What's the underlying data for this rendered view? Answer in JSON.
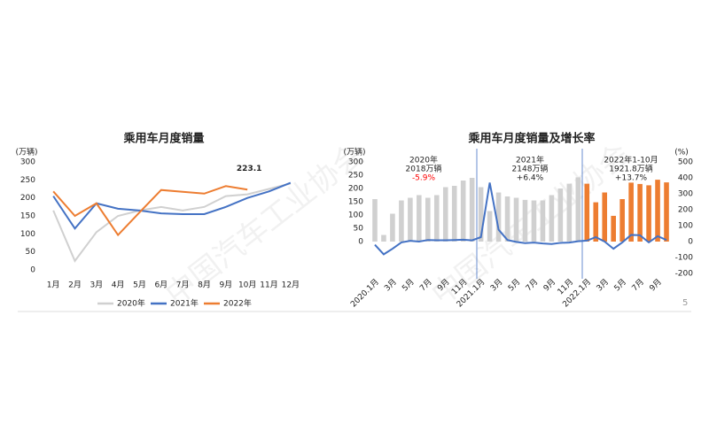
{
  "chart_data": [
    {
      "type": "line",
      "title": "乘用车月度销量",
      "y_label": "(万辆)",
      "categories": [
        "1月",
        "2月",
        "3月",
        "4月",
        "5月",
        "6月",
        "7月",
        "8月",
        "9月",
        "10月",
        "11月",
        "12月"
      ],
      "series": [
        {
          "name": "2020年",
          "color": "#d0d0d0",
          "values": [
            165,
            25,
            105,
            150,
            165,
            175,
            165,
            175,
            205,
            210,
            225,
            240
          ]
        },
        {
          "name": "2021年",
          "color": "#4472c4",
          "values": [
            205,
            115,
            185,
            170,
            165,
            157,
            155,
            155,
            175,
            200,
            218,
            242
          ]
        },
        {
          "name": "2022年",
          "color": "#ed7d31",
          "values": [
            218,
            150,
            185,
            97,
            160,
            222,
            217,
            212,
            233,
            223.1,
            null,
            null
          ]
        }
      ],
      "ylim": [
        0,
        300
      ],
      "yticks": [
        0,
        50,
        100,
        150,
        200,
        250,
        300
      ],
      "annotation": "223.1",
      "legend": "bottom"
    },
    {
      "type": "bar-line",
      "title": "乘用车月度销量及增长率",
      "y_label": "(万辆)",
      "y2_label": "(%)",
      "categories": [
        "2020.1月",
        null,
        "3月",
        null,
        "5月",
        null,
        "7月",
        null,
        "9月",
        null,
        "11月",
        null,
        "2021.1月",
        null,
        "3月",
        null,
        "5月",
        null,
        "7月",
        null,
        "9月",
        null,
        "11月",
        null,
        "2022.1月",
        null,
        "3月",
        null,
        "5月",
        null,
        "7月",
        null,
        "9月",
        null
      ],
      "series": [
        {
          "type": "bar",
          "color": "#d0d0d0",
          "values": [
            160,
            25,
            105,
            155,
            165,
            175,
            165,
            175,
            205,
            210,
            230,
            240,
            205,
            115,
            185,
            170,
            165,
            157,
            155,
            155,
            175,
            200,
            218,
            242,
            null,
            null,
            null,
            null,
            null,
            null,
            null,
            null,
            null,
            null
          ]
        },
        {
          "type": "bar",
          "color": "#ed7d31",
          "values": [
            null,
            null,
            null,
            null,
            null,
            null,
            null,
            null,
            null,
            null,
            null,
            null,
            null,
            null,
            null,
            null,
            null,
            null,
            null,
            null,
            null,
            null,
            null,
            null,
            218,
            148,
            185,
            97,
            160,
            222,
            217,
            212,
            233,
            223
          ]
        },
        {
          "type": "line",
          "axis": "y2",
          "color": "#4472c4",
          "values": [
            -20,
            -80,
            -45,
            -5,
            5,
            0,
            10,
            8,
            8,
            10,
            12,
            8,
            28,
            370,
            75,
            10,
            -2,
            -10,
            -6,
            -12,
            -15,
            -8,
            -6,
            2,
            6,
            28,
            0,
            -45,
            -5,
            42,
            40,
            -5,
            34,
            10
          ]
        }
      ],
      "ylim": [
        0,
        300
      ],
      "yticks": [
        0,
        50,
        100,
        150,
        200,
        250,
        300
      ],
      "y2lim": [
        -200,
        500
      ],
      "y2ticks": [
        -200,
        -100,
        0,
        100,
        200,
        300,
        400,
        500
      ],
      "annotations": [
        {
          "text": "2020年",
          "color": "#222222"
        },
        {
          "text": "2018万辆",
          "color": "#222222"
        },
        {
          "text": "-5.9%",
          "color": "#ff0000"
        },
        {
          "text": "2021年",
          "color": "#222222"
        },
        {
          "text": "2148万辆",
          "color": "#222222"
        },
        {
          "text": "+6.4%",
          "color": "#222222"
        },
        {
          "text": "2022年1-10月",
          "color": "#222222"
        },
        {
          "text": "1921.8万辆",
          "color": "#222222"
        },
        {
          "text": "+13.7%",
          "color": "#222222"
        }
      ]
    }
  ],
  "watermark": "中国汽车工业协会",
  "page_number": "5"
}
